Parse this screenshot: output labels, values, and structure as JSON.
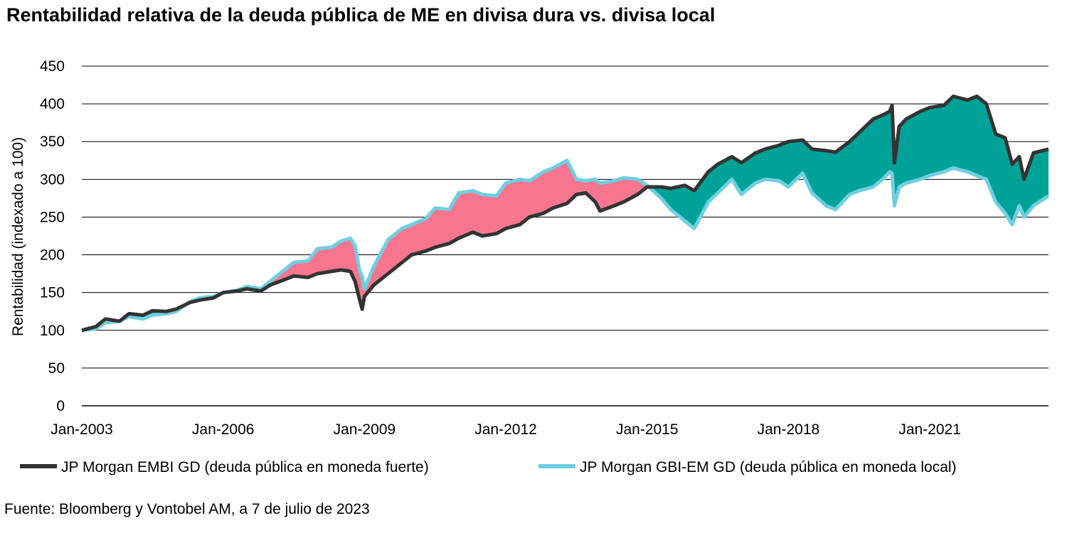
{
  "title": "Rentabilidad relativa de la deuda pública de ME en divisa dura vs. divisa local",
  "source": "Fuente: Bloomberg y Vontobel AM, a 7 de julio de 2023",
  "chart_data": {
    "type": "line",
    "ylabel": "Rentabilidad (indexado a 100)",
    "ylim": [
      0,
      450
    ],
    "yticks": [
      "0",
      "50",
      "100",
      "150",
      "200",
      "250",
      "300",
      "350",
      "400",
      "450"
    ],
    "xlim": [
      2003.0,
      2023.52
    ],
    "xticks": [
      {
        "label": "Jan-2003",
        "x": 2003.0
      },
      {
        "label": "Jan-2006",
        "x": 2006.0
      },
      {
        "label": "Jan-2009",
        "x": 2009.0
      },
      {
        "label": "Jan-2012",
        "x": 2012.0
      },
      {
        "label": "Jan-2015",
        "x": 2015.0
      },
      {
        "label": "Jan-2018",
        "x": 2018.0
      },
      {
        "label": "Jan-2021",
        "x": 2021.0
      }
    ],
    "grid": true,
    "legend_position": "bottom",
    "fill_colors": {
      "local_above": "#f7758f",
      "hard_above": "#00a298"
    },
    "series": [
      {
        "name": "JP Morgan EMBI GD (deuda pública en moneda fuerte)",
        "color": "#333333",
        "x": [
          2003.0,
          2003.3,
          2003.5,
          2003.8,
          2004.0,
          2004.3,
          2004.5,
          2004.8,
          2005.0,
          2005.3,
          2005.5,
          2005.8,
          2006.0,
          2006.3,
          2006.5,
          2006.8,
          2007.0,
          2007.3,
          2007.5,
          2007.8,
          2008.0,
          2008.3,
          2008.5,
          2008.7,
          2008.8,
          2008.9,
          2008.95,
          2009.0,
          2009.2,
          2009.5,
          2009.8,
          2010.0,
          2010.3,
          2010.5,
          2010.8,
          2011.0,
          2011.3,
          2011.5,
          2011.8,
          2012.0,
          2012.3,
          2012.5,
          2012.8,
          2013.0,
          2013.3,
          2013.5,
          2013.7,
          2013.9,
          2014.0,
          2014.3,
          2014.5,
          2014.8,
          2015.0,
          2015.3,
          2015.5,
          2015.8,
          2016.0,
          2016.3,
          2016.5,
          2016.8,
          2017.0,
          2017.3,
          2017.5,
          2017.8,
          2018.0,
          2018.3,
          2018.5,
          2018.8,
          2019.0,
          2019.3,
          2019.5,
          2019.8,
          2020.0,
          2020.15,
          2020.2,
          2020.25,
          2020.35,
          2020.5,
          2020.8,
          2021.0,
          2021.3,
          2021.5,
          2021.8,
          2022.0,
          2022.2,
          2022.4,
          2022.6,
          2022.75,
          2022.9,
          2023.0,
          2023.2,
          2023.52
        ],
        "y": [
          100,
          105,
          115,
          112,
          122,
          120,
          126,
          125,
          128,
          137,
          140,
          143,
          150,
          152,
          155,
          152,
          160,
          167,
          172,
          170,
          175,
          178,
          180,
          178,
          165,
          140,
          128,
          145,
          160,
          175,
          190,
          200,
          205,
          210,
          215,
          222,
          230,
          225,
          228,
          235,
          240,
          250,
          255,
          262,
          268,
          280,
          282,
          270,
          258,
          265,
          270,
          280,
          290,
          290,
          288,
          292,
          285,
          310,
          320,
          330,
          322,
          335,
          340,
          345,
          350,
          352,
          340,
          338,
          336,
          350,
          362,
          380,
          385,
          390,
          398,
          322,
          370,
          380,
          390,
          395,
          398,
          410,
          405,
          410,
          400,
          360,
          355,
          320,
          330,
          300,
          335,
          340
        ]
      },
      {
        "name": "JP Morgan GBI-EM GD (deuda pública en moneda local)",
        "color": "#6fcfe0",
        "x": [
          2003.0,
          2003.3,
          2003.5,
          2003.8,
          2004.0,
          2004.3,
          2004.5,
          2004.8,
          2005.0,
          2005.3,
          2005.5,
          2005.8,
          2006.0,
          2006.3,
          2006.5,
          2006.8,
          2007.0,
          2007.3,
          2007.5,
          2007.8,
          2008.0,
          2008.3,
          2008.5,
          2008.7,
          2008.8,
          2008.9,
          2008.95,
          2009.0,
          2009.2,
          2009.5,
          2009.8,
          2010.0,
          2010.3,
          2010.5,
          2010.8,
          2011.0,
          2011.3,
          2011.5,
          2011.8,
          2012.0,
          2012.3,
          2012.5,
          2012.8,
          2013.0,
          2013.3,
          2013.5,
          2013.7,
          2013.9,
          2014.0,
          2014.3,
          2014.5,
          2014.8,
          2015.0,
          2015.3,
          2015.5,
          2015.8,
          2016.0,
          2016.3,
          2016.5,
          2016.8,
          2017.0,
          2017.3,
          2017.5,
          2017.8,
          2018.0,
          2018.3,
          2018.5,
          2018.8,
          2019.0,
          2019.3,
          2019.5,
          2019.8,
          2020.0,
          2020.15,
          2020.2,
          2020.25,
          2020.35,
          2020.5,
          2020.8,
          2021.0,
          2021.3,
          2021.5,
          2021.8,
          2022.0,
          2022.2,
          2022.4,
          2022.6,
          2022.75,
          2022.9,
          2023.0,
          2023.2,
          2023.52
        ],
        "y": [
          100,
          102,
          110,
          112,
          118,
          115,
          120,
          122,
          125,
          138,
          143,
          145,
          150,
          153,
          158,
          155,
          165,
          180,
          190,
          192,
          208,
          210,
          218,
          222,
          212,
          178,
          172,
          155,
          185,
          220,
          235,
          240,
          248,
          262,
          260,
          282,
          285,
          280,
          278,
          295,
          300,
          298,
          310,
          315,
          325,
          300,
          298,
          300,
          295,
          298,
          302,
          300,
          292,
          275,
          260,
          245,
          235,
          270,
          282,
          300,
          280,
          295,
          300,
          298,
          290,
          308,
          282,
          265,
          260,
          280,
          285,
          290,
          300,
          310,
          308,
          265,
          290,
          295,
          300,
          305,
          310,
          315,
          310,
          305,
          300,
          270,
          255,
          240,
          265,
          250,
          265,
          278
        ]
      }
    ]
  }
}
